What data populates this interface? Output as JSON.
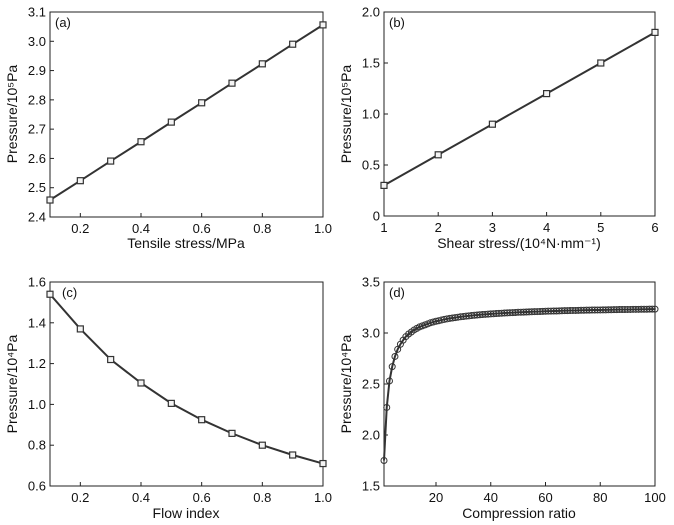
{
  "chart_data": [
    {
      "id": "a",
      "type": "line",
      "panel_label": "(a)",
      "xlabel": "Tensile stress/MPa",
      "ylabel": "Pressure/10⁵Pa",
      "xlim": [
        0.1,
        1.0
      ],
      "ylim": [
        2.4,
        3.1
      ],
      "xticks": [
        "0.2",
        "0.4",
        "0.6",
        "0.8",
        "1.0"
      ],
      "yticks": [
        "2.4",
        "2.5",
        "2.6",
        "2.7",
        "2.8",
        "2.9",
        "3.0",
        "3.1"
      ],
      "marker": "square",
      "series": [
        {
          "name": "Pressure",
          "x": [
            0.1,
            0.2,
            0.3,
            0.4,
            0.5,
            0.6,
            0.7,
            0.8,
            0.9,
            1.0
          ],
          "y": [
            2.458,
            2.524,
            2.591,
            2.657,
            2.724,
            2.79,
            2.857,
            2.923,
            2.99,
            3.056
          ]
        }
      ]
    },
    {
      "id": "b",
      "type": "line",
      "panel_label": "(b)",
      "xlabel": "Shear stress/(10⁴N·mm⁻¹)",
      "ylabel": "Pressure/10⁵Pa",
      "xlim": [
        1,
        6
      ],
      "ylim": [
        0,
        2.0
      ],
      "xticks": [
        "1",
        "2",
        "3",
        "4",
        "5",
        "6"
      ],
      "yticks": [
        "0",
        "0.5",
        "1.0",
        "1.5",
        "2.0"
      ],
      "marker": "square",
      "series": [
        {
          "name": "Pressure",
          "x": [
            1,
            2,
            3,
            4,
            5,
            6
          ],
          "y": [
            0.3,
            0.6,
            0.9,
            1.2,
            1.5,
            1.8
          ]
        }
      ]
    },
    {
      "id": "c",
      "type": "line",
      "panel_label": "(c)",
      "xlabel": "Flow index",
      "ylabel": "Pressure/10⁴Pa",
      "xlim": [
        0.1,
        1.0
      ],
      "ylim": [
        0.6,
        1.6
      ],
      "xticks": [
        "0.2",
        "0.4",
        "0.6",
        "0.8",
        "1.0"
      ],
      "yticks": [
        "0.6",
        "0.8",
        "1.0",
        "1.2",
        "1.4",
        "1.6"
      ],
      "marker": "square",
      "series": [
        {
          "name": "Pressure",
          "x": [
            0.1,
            0.2,
            0.3,
            0.4,
            0.5,
            0.6,
            0.7,
            0.8,
            0.9,
            1.0
          ],
          "y": [
            1.54,
            1.37,
            1.22,
            1.105,
            1.005,
            0.925,
            0.858,
            0.8,
            0.752,
            0.71
          ]
        }
      ]
    },
    {
      "id": "d",
      "type": "line",
      "panel_label": "(d)",
      "xlabel": "Compression ratio",
      "ylabel": "Pressure/10⁴Pa",
      "xlim": [
        1,
        100
      ],
      "ylim": [
        1.5,
        3.5
      ],
      "xticks": [
        "20",
        "40",
        "60",
        "80",
        "100"
      ],
      "yticks": [
        "1.5",
        "2.0",
        "2.5",
        "3.0",
        "3.5"
      ],
      "marker": "circle",
      "series": [
        {
          "name": "Pressure",
          "x": [
            1,
            2,
            3,
            4,
            5,
            6,
            7,
            8,
            9,
            10,
            11,
            12,
            13,
            14,
            15,
            16,
            17,
            18,
            19,
            20,
            21,
            22,
            23,
            24,
            25,
            26,
            27,
            28,
            29,
            30,
            31,
            32,
            33,
            34,
            35,
            36,
            37,
            38,
            39,
            40,
            41,
            42,
            43,
            44,
            45,
            46,
            47,
            48,
            49,
            50,
            51,
            52,
            53,
            54,
            55,
            56,
            57,
            58,
            59,
            60,
            61,
            62,
            63,
            64,
            65,
            66,
            67,
            68,
            69,
            70,
            71,
            72,
            73,
            74,
            75,
            76,
            77,
            78,
            79,
            80,
            81,
            82,
            83,
            84,
            85,
            86,
            87,
            88,
            89,
            90,
            91,
            92,
            93,
            94,
            95,
            96,
            97,
            98,
            99,
            100
          ],
          "y": [
            1.75,
            2.27,
            2.53,
            2.67,
            2.77,
            2.84,
            2.89,
            2.93,
            2.965,
            2.99,
            3.01,
            3.03,
            3.045,
            3.06,
            3.07,
            3.08,
            3.09,
            3.1,
            3.108,
            3.115,
            3.12,
            3.127,
            3.133,
            3.138,
            3.143,
            3.147,
            3.151,
            3.155,
            3.159,
            3.162,
            3.165,
            3.168,
            3.171,
            3.174,
            3.176,
            3.179,
            3.181,
            3.183,
            3.185,
            3.187,
            3.189,
            3.191,
            3.192,
            3.194,
            3.196,
            3.197,
            3.199,
            3.2,
            3.201,
            3.203,
            3.204,
            3.205,
            3.206,
            3.207,
            3.208,
            3.209,
            3.21,
            3.211,
            3.212,
            3.213,
            3.214,
            3.215,
            3.216,
            3.216,
            3.217,
            3.218,
            3.219,
            3.219,
            3.22,
            3.221,
            3.221,
            3.222,
            3.223,
            3.223,
            3.224,
            3.224,
            3.225,
            3.225,
            3.226,
            3.226,
            3.227,
            3.227,
            3.228,
            3.228,
            3.229,
            3.229,
            3.23,
            3.23,
            3.23,
            3.231,
            3.231,
            3.232,
            3.232,
            3.232,
            3.233,
            3.233,
            3.233,
            3.234,
            3.234,
            3.234
          ]
        }
      ]
    }
  ]
}
